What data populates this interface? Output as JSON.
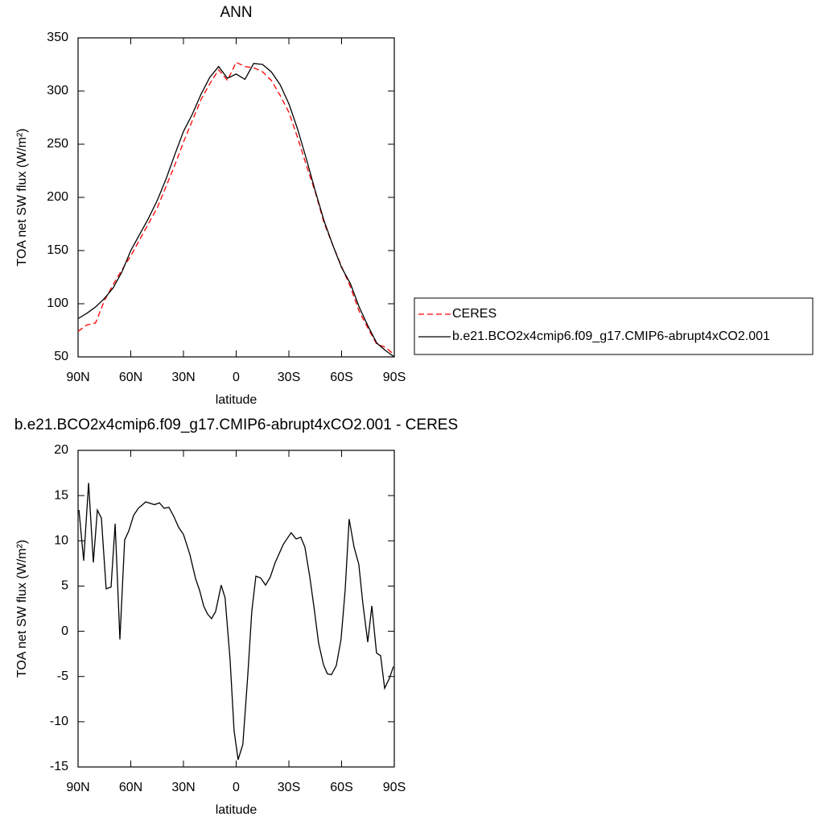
{
  "chart_data": [
    {
      "type": "line",
      "title": "ANN",
      "x_label": "latitude",
      "y_label": "TOA net SW flux (W/m²)",
      "x": [
        90,
        85,
        80,
        75,
        70,
        65,
        60,
        55,
        50,
        45,
        40,
        35,
        30,
        25,
        20,
        15,
        10,
        5,
        0,
        -5,
        -10,
        -15,
        -20,
        -25,
        -30,
        -35,
        -40,
        -45,
        -50,
        -55,
        -60,
        -65,
        -70,
        -75,
        -80,
        -85,
        -90
      ],
      "series": [
        {
          "name": "CERES",
          "color": "#ff0000",
          "line_style": "dashed",
          "values": [
            74,
            80,
            82,
            103,
            118,
            132,
            145,
            160,
            175,
            190,
            210,
            230,
            252,
            272,
            292,
            307,
            320,
            310,
            327,
            323,
            322,
            318,
            310,
            296,
            280,
            256,
            230,
            205,
            176,
            155,
            135,
            116,
            93,
            77,
            62,
            59,
            52
          ]
        },
        {
          "name": "b.e21.BCO2x4cmip6.f09_g17.CMIP6-abrupt4xCO2.001",
          "color": "#000000",
          "line_style": "solid",
          "values": [
            86,
            91,
            97,
            105,
            115,
            130,
            150,
            165,
            180,
            197,
            217,
            240,
            262,
            278,
            297,
            313,
            323,
            312,
            316,
            311,
            326,
            325,
            318,
            306,
            288,
            264,
            236,
            206,
            178,
            155,
            134,
            119,
            97,
            79,
            63,
            56,
            50
          ]
        }
      ],
      "xlim": [
        90,
        -90
      ],
      "xticks": [
        {
          "value": 90,
          "label": "90N"
        },
        {
          "value": 60,
          "label": "60N"
        },
        {
          "value": 30,
          "label": "30N"
        },
        0,
        {
          "value": -30,
          "label": "30S"
        },
        {
          "value": -60,
          "label": "60S"
        },
        {
          "value": -90,
          "label": "90S"
        }
      ],
      "ylim": [
        50,
        350
      ],
      "yticks": [
        50,
        100,
        150,
        200,
        250,
        300,
        350
      ],
      "legend": "outside-right"
    },
    {
      "type": "line",
      "title": "b.e21.BCO2x4cmip6.f09_g17.CMIP6-abrupt4xCO2.001 - CERES",
      "x_label": "latitude",
      "y_label": "TOA net SW flux (W/m²)",
      "x": [
        89.5,
        86.8,
        84,
        81.3,
        79,
        76.7,
        74,
        71.2,
        68.9,
        66.2,
        63.5,
        61.1,
        58.4,
        55.7,
        51.5,
        46.5,
        43.7,
        41,
        38.3,
        35.5,
        32.8,
        30,
        26.4,
        23.1,
        20.8,
        18.5,
        16.3,
        14,
        11.7,
        8.5,
        6.3,
        3.5,
        1.2,
        -1.1,
        -3.8,
        -6.6,
        -8.9,
        -11.2,
        -13.9,
        -16.7,
        -19.4,
        -22.2,
        -26.8,
        -31.3,
        -34.1,
        -36.8,
        -39.1,
        -41.9,
        -44.6,
        -46.9,
        -49.7,
        -51.9,
        -54.2,
        -57,
        -59.7,
        -62,
        -64.3,
        -67.1,
        -69.8,
        -72.1,
        -74.9,
        -77.2,
        -79.9,
        -82.2,
        -84.5,
        -87.2,
        -89.5
      ],
      "values": [
        13.4,
        7.8,
        16.4,
        7.6,
        13.4,
        12.5,
        4.7,
        4.9,
        11.9,
        -0.9,
        10.1,
        11.1,
        12.8,
        13.6,
        14.3,
        14.0,
        14.2,
        13.6,
        13.7,
        12.7,
        11.5,
        10.7,
        8.5,
        5.8,
        4.5,
        2.8,
        1.9,
        1.4,
        2.2,
        5.1,
        3.7,
        -3.1,
        -11.0,
        -14.2,
        -12.5,
        -4.9,
        2.2,
        6.1,
        5.9,
        5.1,
        6.0,
        7.6,
        9.6,
        10.9,
        10.2,
        10.4,
        9.3,
        6.0,
        2.2,
        -1.3,
        -3.7,
        -4.7,
        -4.8,
        -3.8,
        -0.9,
        4.5,
        12.4,
        9.3,
        7.4,
        3.1,
        -1.2,
        2.8,
        -2.4,
        -2.7,
        -6.3,
        -5.2,
        -3.9
      ],
      "color": "#000000",
      "line_style": "solid",
      "xlim": [
        90,
        -90
      ],
      "xticks": [
        {
          "value": 90,
          "label": "90N"
        },
        {
          "value": 60,
          "label": "60N"
        },
        {
          "value": 30,
          "label": "30N"
        },
        0,
        {
          "value": -30,
          "label": "30S"
        },
        {
          "value": -60,
          "label": "60S"
        },
        {
          "value": -90,
          "label": "90S"
        }
      ],
      "ylim": [
        -15,
        20
      ],
      "yticks": [
        -15,
        -10,
        -5,
        0,
        5,
        10,
        15,
        20
      ]
    }
  ]
}
